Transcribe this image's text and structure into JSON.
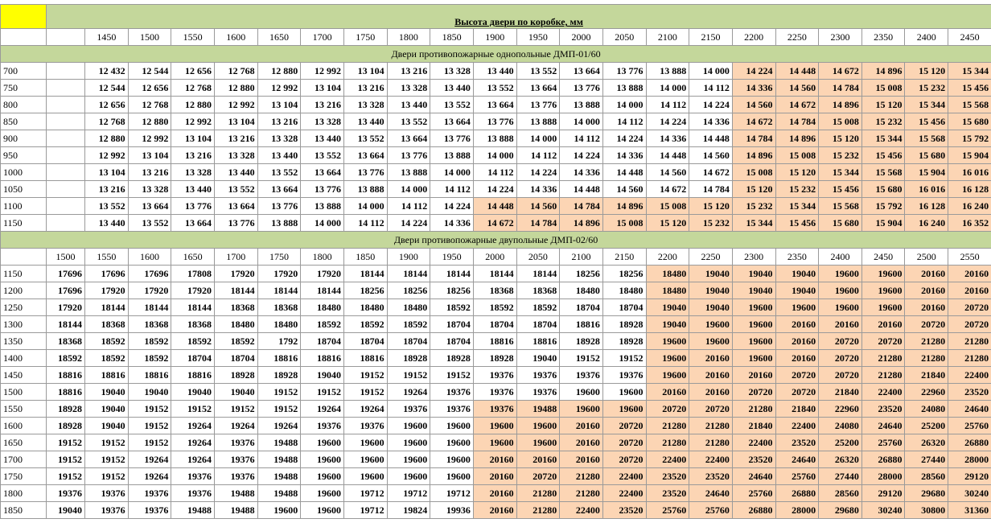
{
  "header": {
    "title": "Высота двери по коробке, мм"
  },
  "colors": {
    "corner": "#ffff00",
    "title_background": "#c4d79b",
    "highlight": "#fcd5b4"
  },
  "sections": [
    {
      "title": "Двери противопожарные однопольные ДМП-01/60",
      "columns": [
        1450,
        1500,
        1550,
        1600,
        1650,
        1700,
        1750,
        1800,
        1850,
        1900,
        1950,
        2000,
        2050,
        2100,
        2150,
        2200,
        2250,
        2300,
        2350,
        2400,
        2450
      ],
      "rows": [
        {
          "label": 700,
          "highlight_start": 15,
          "values": [
            "12 432",
            "12 544",
            "12 656",
            "12 768",
            "12 880",
            "12 992",
            "13 104",
            "13 216",
            "13 328",
            "13 440",
            "13 552",
            "13 664",
            "13 776",
            "13 888",
            "14 000",
            "14 224",
            "14 448",
            "14 672",
            "14 896",
            "15 120",
            "15 344"
          ]
        },
        {
          "label": 750,
          "highlight_start": 15,
          "values": [
            "12 544",
            "12 656",
            "12 768",
            "12 880",
            "12 992",
            "13 104",
            "13 216",
            "13 328",
            "13 440",
            "13 552",
            "13 664",
            "13 776",
            "13 888",
            "14 000",
            "14 112",
            "14 336",
            "14 560",
            "14 784",
            "15 008",
            "15 232",
            "15 456"
          ]
        },
        {
          "label": 800,
          "highlight_start": 15,
          "values": [
            "12 656",
            "12 768",
            "12 880",
            "12 992",
            "13 104",
            "13 216",
            "13 328",
            "13 440",
            "13 552",
            "13 664",
            "13 776",
            "13 888",
            "14 000",
            "14 112",
            "14 224",
            "14 560",
            "14 672",
            "14 896",
            "15 120",
            "15 344",
            "15 568"
          ]
        },
        {
          "label": 850,
          "highlight_start": 15,
          "values": [
            "12 768",
            "12 880",
            "12 992",
            "13 104",
            "13 216",
            "13 328",
            "13 440",
            "13 552",
            "13 664",
            "13 776",
            "13 888",
            "14 000",
            "14 112",
            "14 224",
            "14 336",
            "14 672",
            "14 784",
            "15 008",
            "15 232",
            "15 456",
            "15 680"
          ]
        },
        {
          "label": 900,
          "highlight_start": 15,
          "values": [
            "12 880",
            "12 992",
            "13 104",
            "13 216",
            "13 328",
            "13 440",
            "13 552",
            "13 664",
            "13 776",
            "13 888",
            "14 000",
            "14 112",
            "14 224",
            "14 336",
            "14 448",
            "14 784",
            "14 896",
            "15 120",
            "15 344",
            "15 568",
            "15 792"
          ]
        },
        {
          "label": 950,
          "highlight_start": 15,
          "values": [
            "12 992",
            "13 104",
            "13 216",
            "13 328",
            "13 440",
            "13 552",
            "13 664",
            "13 776",
            "13 888",
            "14 000",
            "14 112",
            "14 224",
            "14 336",
            "14 448",
            "14 560",
            "14 896",
            "15 008",
            "15 232",
            "15 456",
            "15 680",
            "15 904"
          ]
        },
        {
          "label": 1000,
          "highlight_start": 15,
          "values": [
            "13 104",
            "13 216",
            "13 328",
            "13 440",
            "13 552",
            "13 664",
            "13 776",
            "13 888",
            "14 000",
            "14 112",
            "14 224",
            "14 336",
            "14 448",
            "14 560",
            "14 672",
            "15 008",
            "15 120",
            "15 344",
            "15 568",
            "15 904",
            "16 016"
          ]
        },
        {
          "label": 1050,
          "highlight_start": 15,
          "values": [
            "13 216",
            "13 328",
            "13 440",
            "13 552",
            "13 664",
            "13 776",
            "13 888",
            "14 000",
            "14 112",
            "14 224",
            "14 336",
            "14 448",
            "14 560",
            "14 672",
            "14 784",
            "15 120",
            "15 232",
            "15 456",
            "15 680",
            "16 016",
            "16 128"
          ]
        },
        {
          "label": 1100,
          "highlight_start": 9,
          "values": [
            "13 552",
            "13 664",
            "13 776",
            "13 664",
            "13 776",
            "13 888",
            "14 000",
            "14 112",
            "14 224",
            "14 448",
            "14 560",
            "14 784",
            "14 896",
            "15 008",
            "15 120",
            "15 232",
            "15 344",
            "15 568",
            "15 792",
            "16 128",
            "16 240"
          ]
        },
        {
          "label": 1150,
          "highlight_start": 9,
          "values": [
            "13 440",
            "13 552",
            "13 664",
            "13 776",
            "13 888",
            "14 000",
            "14 112",
            "14 224",
            "14 336",
            "14 672",
            "14 784",
            "14 896",
            "15 008",
            "15 120",
            "15 232",
            "15 344",
            "15 456",
            "15 680",
            "15 904",
            "16 240",
            "16 352"
          ]
        }
      ]
    },
    {
      "title": "Двери противопожарные двупольные ДМП-02/60",
      "columns": [
        1500,
        1550,
        1600,
        1650,
        1700,
        1750,
        1800,
        1850,
        1900,
        1950,
        2000,
        2050,
        2100,
        2150,
        2200,
        2250,
        2300,
        2350,
        2400,
        2450,
        2500,
        2550
      ],
      "rows": [
        {
          "label": 1150,
          "highlight_start": 14,
          "values": [
            17696,
            17696,
            17696,
            17808,
            17920,
            17920,
            17920,
            18144,
            18144,
            18144,
            18144,
            18144,
            18256,
            18256,
            18480,
            19040,
            19040,
            19040,
            19600,
            19600,
            20160,
            20160
          ]
        },
        {
          "label": 1200,
          "highlight_start": 14,
          "values": [
            17696,
            17920,
            17920,
            17920,
            18144,
            18144,
            18144,
            18256,
            18256,
            18256,
            18368,
            18368,
            18480,
            18480,
            18480,
            19040,
            19040,
            19040,
            19600,
            19600,
            20160,
            20160
          ]
        },
        {
          "label": 1250,
          "highlight_start": 14,
          "values": [
            17920,
            18144,
            18144,
            18144,
            18368,
            18368,
            18480,
            18480,
            18480,
            18592,
            18592,
            18592,
            18704,
            18704,
            19040,
            19040,
            19600,
            19600,
            19600,
            19600,
            20160,
            20720
          ]
        },
        {
          "label": 1300,
          "highlight_start": 14,
          "values": [
            18144,
            18368,
            18368,
            18368,
            18480,
            18480,
            18592,
            18592,
            18592,
            18704,
            18704,
            18704,
            18816,
            18928,
            19040,
            19600,
            19600,
            20160,
            20160,
            20160,
            20720,
            20720
          ]
        },
        {
          "label": 1350,
          "highlight_start": 14,
          "values": [
            18368,
            18592,
            18592,
            18592,
            18592,
            1792,
            18704,
            18704,
            18704,
            18704,
            18816,
            18816,
            18928,
            18928,
            19600,
            19600,
            19600,
            20160,
            20720,
            20720,
            21280,
            21280
          ]
        },
        {
          "label": 1400,
          "highlight_start": 14,
          "values": [
            18592,
            18592,
            18592,
            18704,
            18704,
            18816,
            18816,
            18816,
            18928,
            18928,
            18928,
            19040,
            19152,
            19152,
            19600,
            20160,
            19600,
            20160,
            20720,
            21280,
            21280,
            21280
          ]
        },
        {
          "label": 1450,
          "highlight_start": 14,
          "values": [
            18816,
            18816,
            18816,
            18816,
            18928,
            18928,
            19040,
            19152,
            19152,
            19152,
            19376,
            19376,
            19376,
            19376,
            19600,
            20160,
            20160,
            20720,
            20720,
            21280,
            21840,
            22400
          ]
        },
        {
          "label": 1500,
          "highlight_start": 14,
          "values": [
            18816,
            19040,
            19040,
            19040,
            19040,
            19152,
            19152,
            19152,
            19264,
            19376,
            19376,
            19376,
            19600,
            19600,
            20160,
            20160,
            20720,
            20720,
            21840,
            22400,
            22960,
            23520
          ]
        },
        {
          "label": 1550,
          "highlight_start": 10,
          "values": [
            18928,
            19040,
            19152,
            19152,
            19152,
            19152,
            19264,
            19264,
            19376,
            19376,
            19376,
            19488,
            19600,
            19600,
            20720,
            20720,
            21280,
            21840,
            22960,
            23520,
            24080,
            24640
          ]
        },
        {
          "label": 1600,
          "highlight_start": 10,
          "values": [
            18928,
            19040,
            19152,
            19264,
            19264,
            19264,
            19376,
            19376,
            19600,
            19600,
            19600,
            19600,
            20160,
            20720,
            21280,
            21280,
            21840,
            22400,
            24080,
            24640,
            25200,
            25760
          ]
        },
        {
          "label": 1650,
          "highlight_start": 10,
          "values": [
            19152,
            19152,
            19152,
            19264,
            19376,
            19488,
            19600,
            19600,
            19600,
            19600,
            19600,
            19600,
            20160,
            20720,
            21280,
            21280,
            22400,
            23520,
            25200,
            25760,
            26320,
            26880
          ]
        },
        {
          "label": 1700,
          "highlight_start": 10,
          "values": [
            19152,
            19152,
            19264,
            19264,
            19376,
            19488,
            19600,
            19600,
            19600,
            19600,
            20160,
            20160,
            20160,
            20720,
            22400,
            22400,
            23520,
            24640,
            26320,
            26880,
            27440,
            28000
          ]
        },
        {
          "label": 1750,
          "highlight_start": 10,
          "values": [
            19152,
            19152,
            19264,
            19376,
            19376,
            19488,
            19600,
            19600,
            19600,
            19600,
            20160,
            20720,
            21280,
            22400,
            23520,
            23520,
            24640,
            25760,
            27440,
            28000,
            28560,
            29120
          ]
        },
        {
          "label": 1800,
          "highlight_start": 10,
          "values": [
            19376,
            19376,
            19376,
            19376,
            19488,
            19488,
            19600,
            19712,
            19712,
            19712,
            20160,
            21280,
            21280,
            22400,
            23520,
            24640,
            25760,
            26880,
            28560,
            29120,
            29680,
            30240
          ]
        },
        {
          "label": 1850,
          "highlight_start": 10,
          "values": [
            19040,
            19376,
            19376,
            19488,
            19488,
            19600,
            19600,
            19712,
            19824,
            19936,
            20160,
            21280,
            22400,
            23520,
            25760,
            25760,
            26880,
            28000,
            29680,
            30240,
            30800,
            31360
          ]
        }
      ]
    }
  ]
}
